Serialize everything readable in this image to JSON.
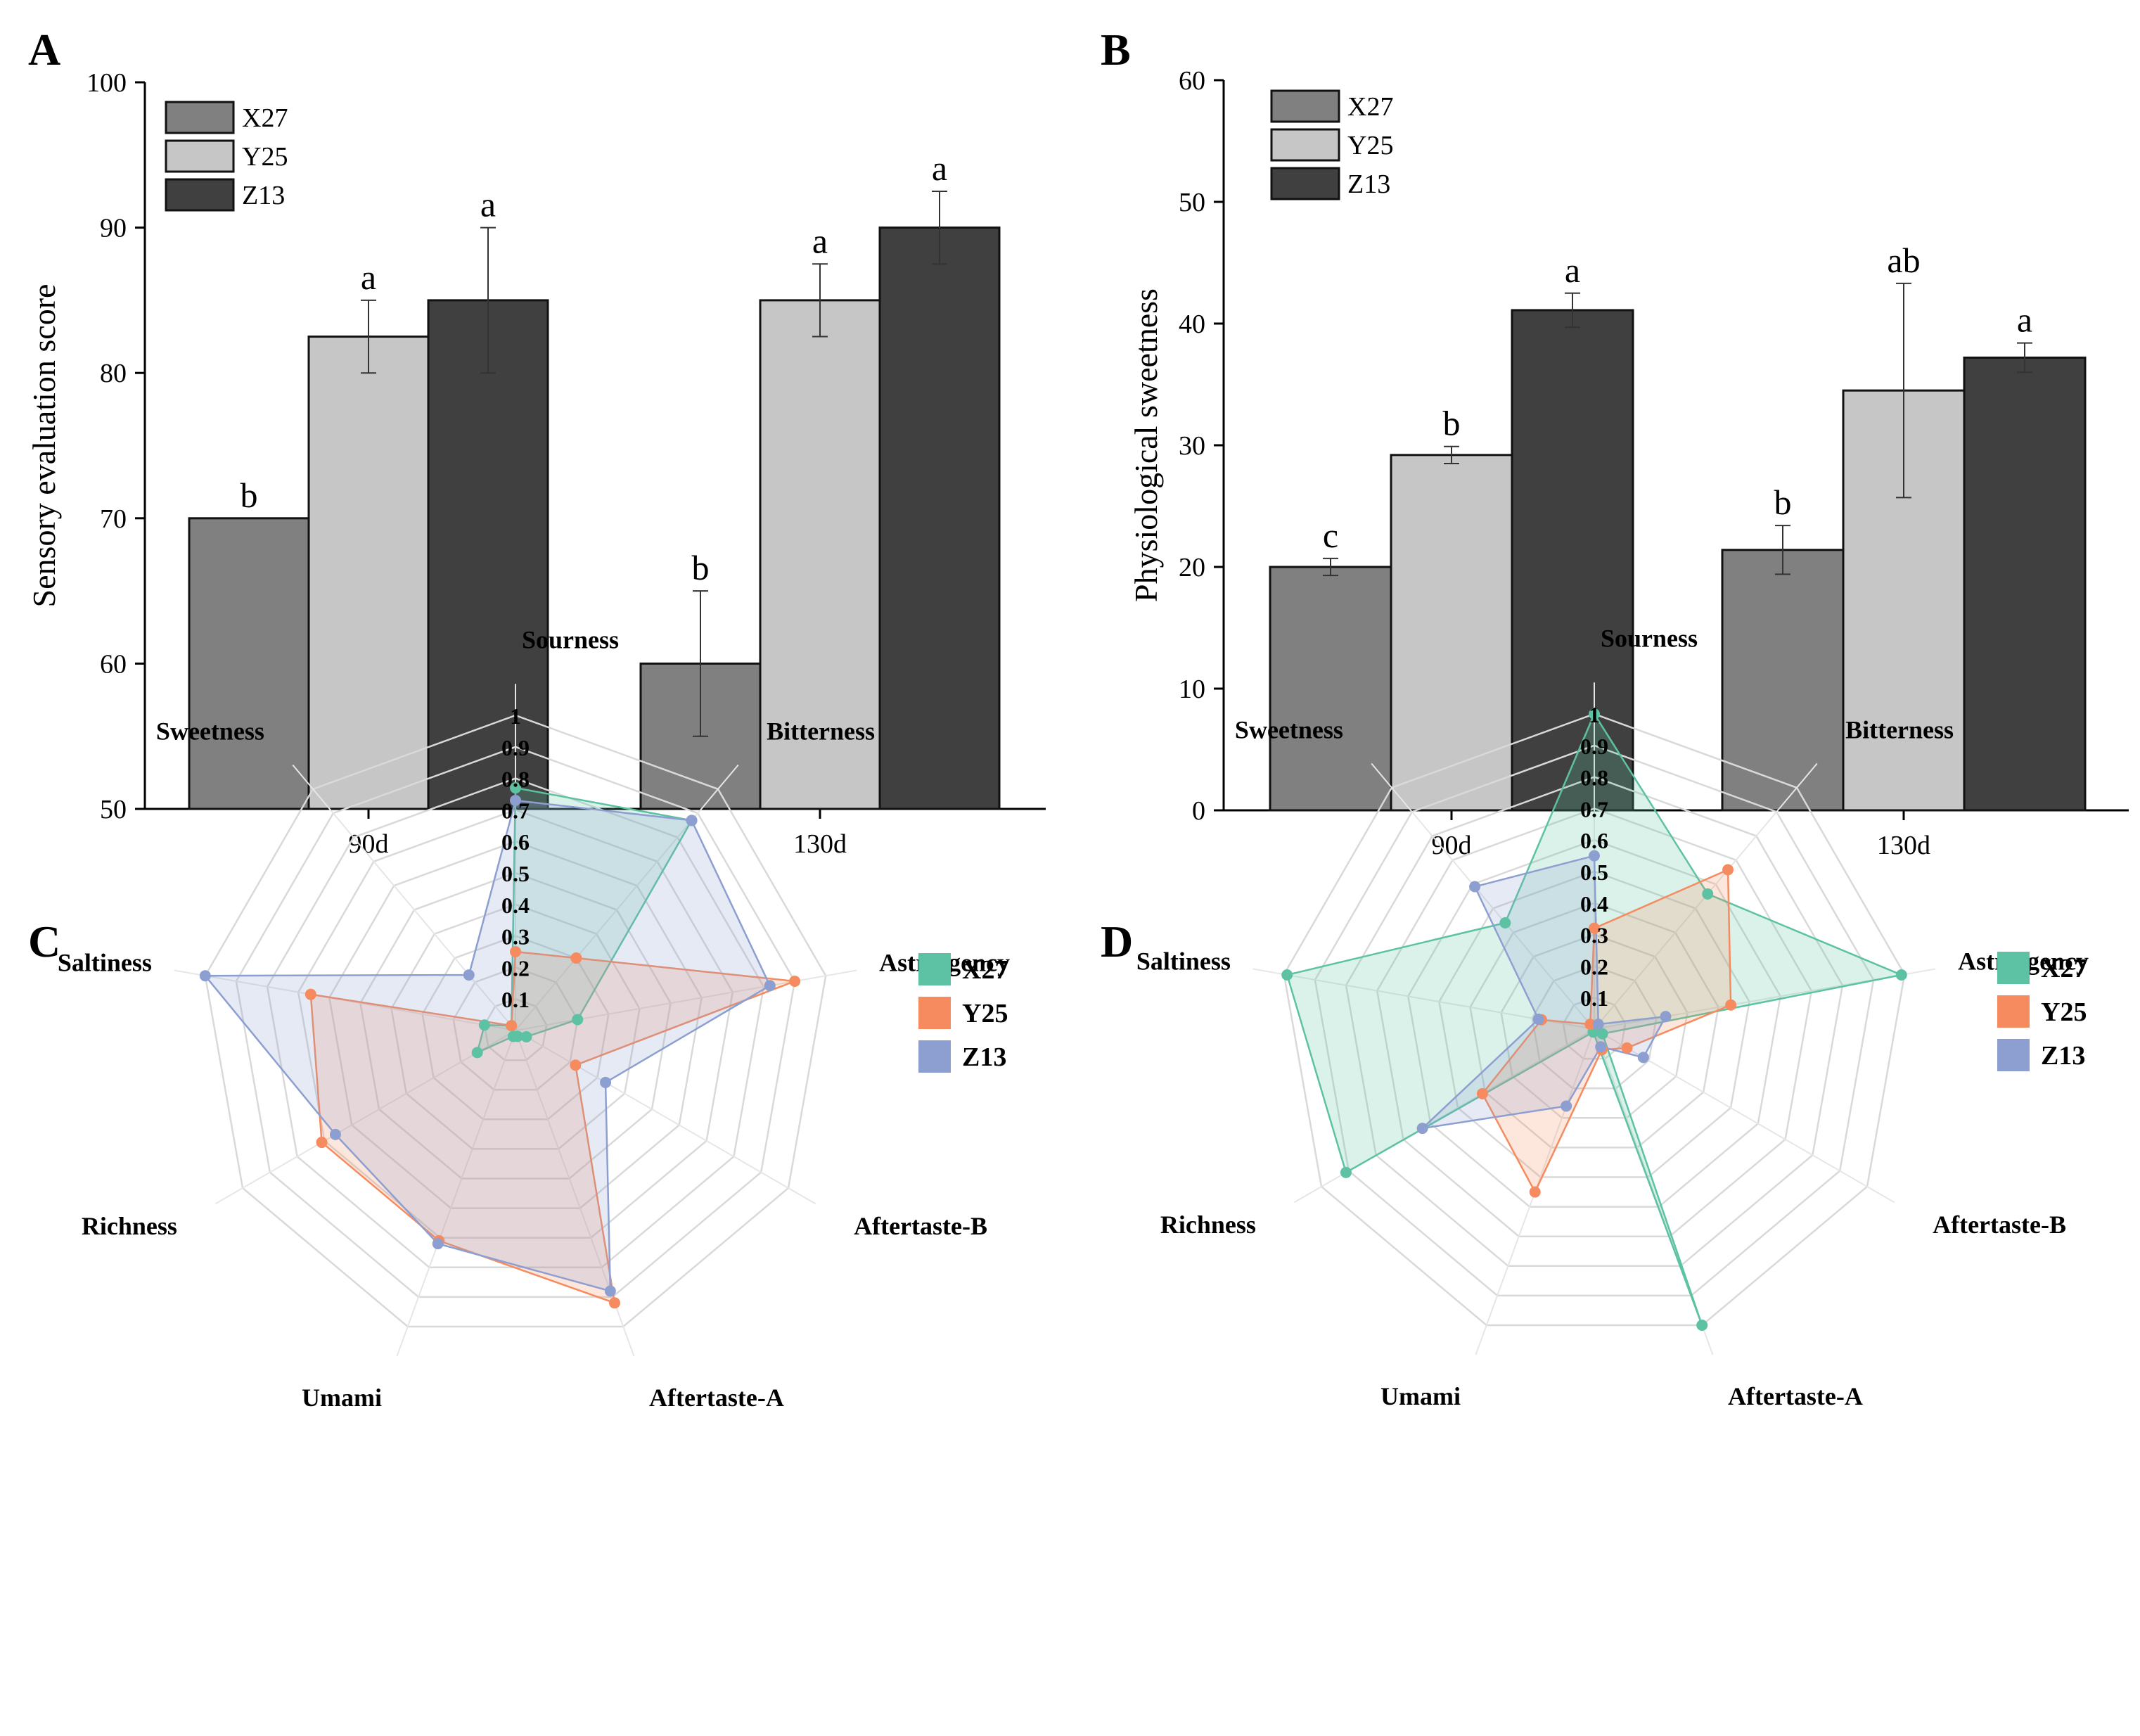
{
  "colors": {
    "X27": "#808080",
    "Y25": "#c6c6c6",
    "Z13": "#404040"
  },
  "radar_colors": {
    "X27": "#5cc2a3",
    "Y25": "#f58b5e",
    "Z13": "#8c9fd0"
  },
  "chart_data": [
    {
      "panel": "A",
      "type": "bar",
      "categories": [
        "90d",
        "130d"
      ],
      "ylabel": "Sensory evaluation score",
      "ylim": [
        50,
        100
      ],
      "yticks": [
        50,
        60,
        70,
        80,
        90,
        100
      ],
      "legend": "top-left",
      "series": [
        {
          "name": "X27",
          "values": [
            70,
            60
          ],
          "errors": [
            0,
            5
          ],
          "letters": [
            "b",
            "b"
          ]
        },
        {
          "name": "Y25",
          "values": [
            82.5,
            85
          ],
          "errors": [
            2.5,
            2.5
          ],
          "letters": [
            "a",
            "a"
          ]
        },
        {
          "name": "Z13",
          "values": [
            85,
            90
          ],
          "errors": [
            5,
            2.5
          ],
          "letters": [
            "a",
            "a"
          ]
        }
      ]
    },
    {
      "panel": "B",
      "type": "bar",
      "categories": [
        "90d",
        "130d"
      ],
      "ylabel": "Physiological sweetness",
      "ylim": [
        0,
        60
      ],
      "yticks": [
        0,
        10,
        20,
        30,
        40,
        50,
        60
      ],
      "legend": "top-left",
      "series": [
        {
          "name": "X27",
          "values": [
            20,
            21.4
          ],
          "errors": [
            0.7,
            2.0
          ],
          "letters": [
            "c",
            "b"
          ]
        },
        {
          "name": "Y25",
          "values": [
            29.2,
            34.5
          ],
          "errors": [
            0.7,
            8.8
          ],
          "letters": [
            "b",
            "ab"
          ]
        },
        {
          "name": "Z13",
          "values": [
            41.1,
            37.2
          ],
          "errors": [
            1.4,
            1.2
          ],
          "letters": [
            "a",
            "a"
          ]
        }
      ]
    },
    {
      "panel": "C",
      "type": "radar",
      "axes": [
        "Sourness",
        "Bitterness",
        "Astringency",
        "Aftertaste-B",
        "Aftertaste-A",
        "Umami",
        "Richness",
        "Saltiness",
        "Sweetness"
      ],
      "rlim": [
        0,
        1
      ],
      "rticks": [
        "0.1",
        "0.2",
        "0.3",
        "0.4",
        "0.5",
        "0.6",
        "0.7",
        "0.8",
        "0.9",
        "1"
      ],
      "legend": "top-right",
      "series": [
        {
          "name": "X27",
          "values": [
            0.77,
            0.87,
            0.2,
            0.04,
            0.02,
            0.02,
            0.14,
            0.1,
            0.02
          ]
        },
        {
          "name": "Y25",
          "values": [
            0.25,
            0.3,
            0.9,
            0.22,
            0.92,
            0.71,
            0.71,
            0.66,
            0.02
          ]
        },
        {
          "name": "Z13",
          "values": [
            0.73,
            0.87,
            0.82,
            0.33,
            0.88,
            0.72,
            0.66,
            1.0,
            0.23
          ]
        }
      ]
    },
    {
      "panel": "D",
      "type": "radar",
      "axes": [
        "Sourness",
        "Bitterness",
        "Astringency",
        "Aftertaste-B",
        "Aftertaste-A",
        "Umami",
        "Richness",
        "Saltiness",
        "Sweetness"
      ],
      "rlim": [
        0,
        1
      ],
      "rticks": [
        "0.1",
        "0.2",
        "0.3",
        "0.4",
        "0.5",
        "0.6",
        "0.7",
        "0.8",
        "0.9",
        "1"
      ],
      "legend": "top-right",
      "series": [
        {
          "name": "X27",
          "values": [
            1.0,
            0.56,
            0.99,
            0.03,
            1.0,
            0.01,
            0.91,
            0.99,
            0.44
          ]
        },
        {
          "name": "Y25",
          "values": [
            0.32,
            0.66,
            0.44,
            0.12,
            0.07,
            0.55,
            0.41,
            0.17,
            0.02
          ]
        },
        {
          "name": "Z13",
          "values": [
            0.55,
            0.02,
            0.23,
            0.18,
            0.06,
            0.26,
            0.63,
            0.18,
            0.59
          ]
        }
      ]
    }
  ]
}
